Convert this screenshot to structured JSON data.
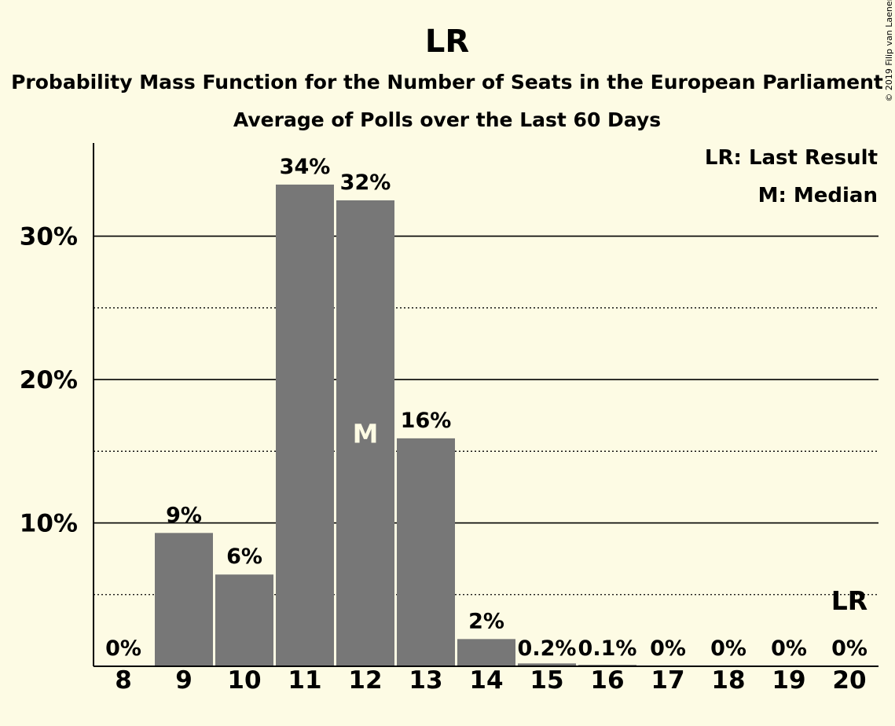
{
  "chart_data": {
    "type": "bar",
    "title": "LR",
    "subtitle": "Probability Mass Function for the Number of Seats in the European Parliament",
    "subtitle2": "Average of Polls over the Last 60 Days",
    "copyright": "© 2019 Filip van Laenen",
    "categories": [
      "8",
      "9",
      "10",
      "11",
      "12",
      "13",
      "14",
      "15",
      "16",
      "17",
      "18",
      "19",
      "20"
    ],
    "values": [
      0,
      9.3,
      6.4,
      33.6,
      32.5,
      15.9,
      1.9,
      0.2,
      0.1,
      0,
      0,
      0,
      0
    ],
    "data_labels": [
      "0%",
      "9%",
      "6%",
      "34%",
      "32%",
      "16%",
      "2%",
      "0.2%",
      "0.1%",
      "0%",
      "0%",
      "0%",
      "0%"
    ],
    "ylim": [
      0,
      36.5
    ],
    "yticks": [
      10,
      20,
      30
    ],
    "ytick_labels": [
      "10%",
      "20%",
      "30%"
    ],
    "minor_gridlines": [
      5,
      15,
      25
    ],
    "legend": {
      "placement": "top-right",
      "last_result": "LR: Last Result",
      "median": "M: Median"
    },
    "median_mark": {
      "label": "M",
      "category": "12"
    },
    "last_result_mark": {
      "label": "LR",
      "category": "20"
    },
    "colors": {
      "bar": "#777777",
      "background": "#fdfbe4",
      "text": "#111111"
    }
  }
}
